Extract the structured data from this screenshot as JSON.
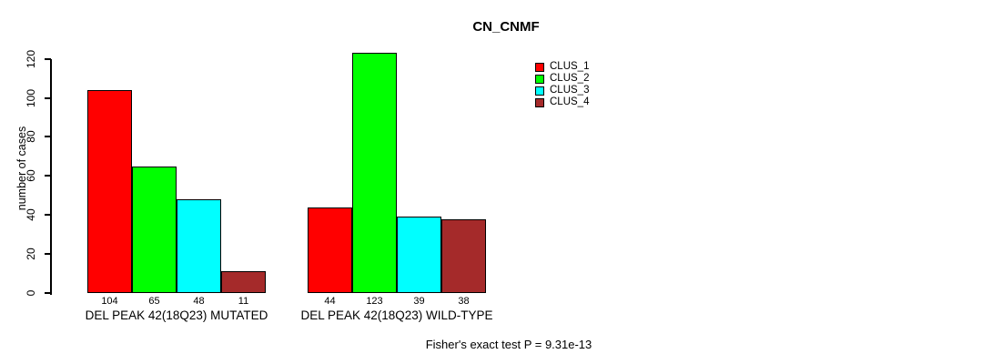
{
  "title": "CN_CNMF",
  "footer": "Fisher's exact test P = 9.31e-13",
  "chart_data": {
    "type": "bar",
    "title": "CN_CNMF",
    "xlabel": "",
    "ylabel": "number of cases",
    "ylim": [
      0,
      120
    ],
    "yticks": [
      0,
      20,
      40,
      60,
      80,
      100,
      120
    ],
    "grid": false,
    "legend_position": "right",
    "categories": [
      "DEL PEAK 42(18Q23) MUTATED",
      "DEL PEAK 42(18Q23) WILD-TYPE"
    ],
    "series": [
      {
        "name": "CLUS_1",
        "color": "#FF0000",
        "values": [
          104,
          44
        ]
      },
      {
        "name": "CLUS_2",
        "color": "#00FF00",
        "values": [
          65,
          123
        ]
      },
      {
        "name": "CLUS_3",
        "color": "#00FFFF",
        "values": [
          48,
          39
        ]
      },
      {
        "name": "CLUS_4",
        "color": "#A52A2A",
        "values": [
          11,
          38
        ]
      }
    ],
    "groups": [
      {
        "label": "DEL PEAK 42(18Q23) MUTATED",
        "values": [
          104,
          65,
          48,
          11
        ]
      },
      {
        "label": "DEL PEAK 42(18Q23) WILD-TYPE",
        "values": [
          44,
          123,
          39,
          38
        ]
      }
    ],
    "bar_value_labels": [
      [
        104,
        65,
        48,
        11
      ],
      [
        44,
        123,
        39,
        38
      ]
    ],
    "legend": [
      {
        "label": "CLUS_1",
        "color": "#FF0000"
      },
      {
        "label": "CLUS_2",
        "color": "#00FF00"
      },
      {
        "label": "CLUS_3",
        "color": "#00FFFF"
      },
      {
        "label": "CLUS_4",
        "color": "#A52A2A"
      }
    ],
    "annotation": "Fisher's exact test P = 9.31e-13"
  }
}
